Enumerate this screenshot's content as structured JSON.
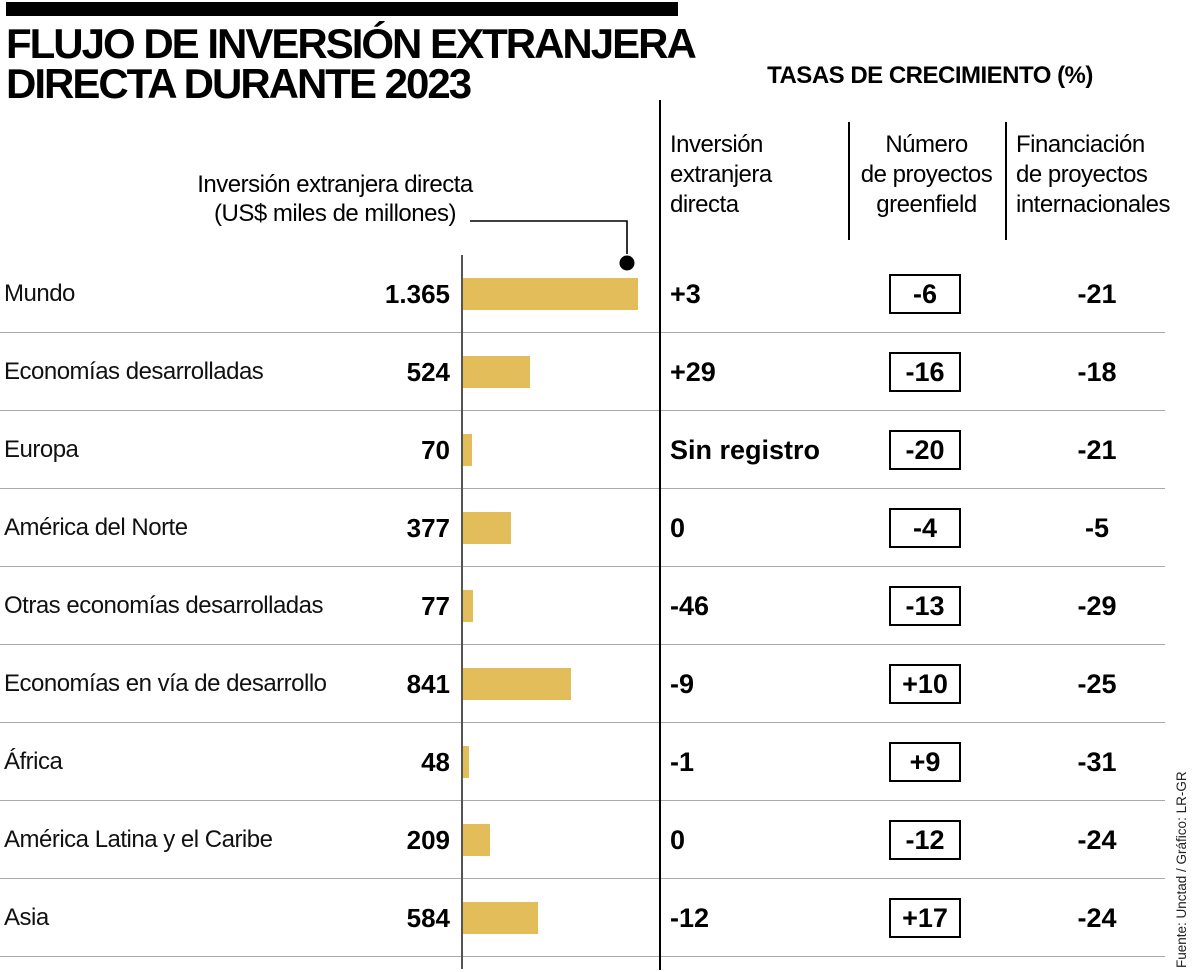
{
  "title": {
    "line1": "FLUJO DE INVERSIÓN EXTRANJERA",
    "line2": "DIRECTA DURANTE 2023"
  },
  "growth_header": "TASAS DE CRECIMIENTO (%)",
  "columns": {
    "fdi": {
      "l1": "Inversión",
      "l2": "extranjera",
      "l3": "directa"
    },
    "greenfield": {
      "l1": "Número",
      "l2": "de proyectos",
      "l3": "greenfield"
    },
    "financing": {
      "l1": "Financiación",
      "l2": "de proyectos",
      "l3": "internacionales"
    }
  },
  "annotation": {
    "line1": "Inversión extranjera directa",
    "line2": "(US$ miles de millones)"
  },
  "source": "Fuente: Unctad / Gráfico: LR-GR",
  "chart_data": {
    "type": "bar",
    "orientation": "horizontal",
    "title": "Flujo de inversión extranjera directa durante 2023",
    "unit": "US$ miles de millones",
    "bar_color": "#e3bd5a",
    "xlim": [
      0,
      1365
    ],
    "grid": false,
    "categories": [
      "Mundo",
      "Economías desarrolladas",
      "Europa",
      "América del Norte",
      "Otras economías desarrolladas",
      "Economías en vía de desarrollo",
      "África",
      "América Latina y el Caribe",
      "Asia"
    ],
    "values": [
      1365,
      524,
      70,
      377,
      77,
      841,
      48,
      209,
      584
    ],
    "value_labels": [
      "1.365",
      "524",
      "70",
      "377",
      "77",
      "841",
      "48",
      "209",
      "584"
    ],
    "series": [
      {
        "name": "Inversión extranjera directa (crecimiento %)",
        "values": [
          "+3",
          "+29",
          "Sin registro",
          "0",
          "-46",
          "-9",
          "-1",
          "0",
          "-12"
        ]
      },
      {
        "name": "Número de proyectos greenfield (crecimiento %)",
        "values": [
          "-6",
          "-16",
          "-20",
          "-4",
          "-13",
          "+10",
          "+9",
          "-12",
          "+17"
        ]
      },
      {
        "name": "Financiación de proyectos internacionales (crecimiento %)",
        "values": [
          "-21",
          "-18",
          "-21",
          "-5",
          "-29",
          "-25",
          "-31",
          "-24",
          "-24"
        ]
      }
    ]
  },
  "rows": [
    {
      "category": "Mundo",
      "value": 1365,
      "value_label": "1.365",
      "fdi_growth": "+3",
      "greenfield_growth": "-6",
      "financing_growth": "-21"
    },
    {
      "category": "Economías desarrolladas",
      "value": 524,
      "value_label": "524",
      "fdi_growth": "+29",
      "greenfield_growth": "-16",
      "financing_growth": "-18"
    },
    {
      "category": "Europa",
      "value": 70,
      "value_label": "70",
      "fdi_growth": "Sin registro",
      "greenfield_growth": "-20",
      "financing_growth": "-21"
    },
    {
      "category": "América del Norte",
      "value": 377,
      "value_label": "377",
      "fdi_growth": "0",
      "greenfield_growth": "-4",
      "financing_growth": "-5"
    },
    {
      "category": "Otras economías desarrolladas",
      "value": 77,
      "value_label": "77",
      "fdi_growth": "-46",
      "greenfield_growth": "-13",
      "financing_growth": "-29"
    },
    {
      "category": "Economías en vía de desarrollo",
      "value": 841,
      "value_label": "841",
      "fdi_growth": "-9",
      "greenfield_growth": "+10",
      "financing_growth": "-25"
    },
    {
      "category": "África",
      "value": 48,
      "value_label": "48",
      "fdi_growth": "-1",
      "greenfield_growth": "+9",
      "financing_growth": "-31"
    },
    {
      "category": "América Latina y el Caribe",
      "value": 209,
      "value_label": "209",
      "fdi_growth": "0",
      "greenfield_growth": "-12",
      "financing_growth": "-24"
    },
    {
      "category": "Asia",
      "value": 584,
      "value_label": "584",
      "fdi_growth": "-12",
      "greenfield_growth": "+17",
      "financing_growth": "-24"
    }
  ]
}
